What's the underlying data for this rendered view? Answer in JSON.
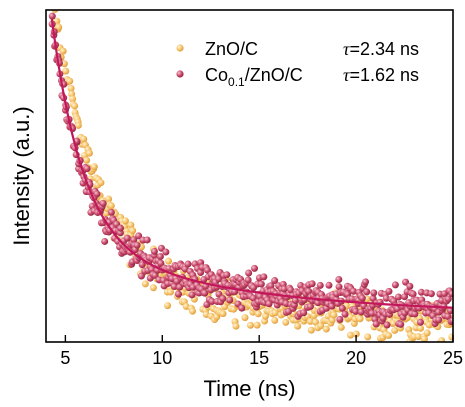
{
  "chart_data": {
    "type": "scatter",
    "xlabel": "Time (ns)",
    "ylabel": "Intensity (a.u.)",
    "xlim": [
      4,
      25
    ],
    "ylim": [
      0.08,
      1.0
    ],
    "x_ticks": [
      5,
      10,
      15,
      20,
      25
    ],
    "y_tick_labels": false,
    "grid": false,
    "legend_placement": "top-right",
    "series": [
      {
        "name": "ZnO/C",
        "name_main": "ZnO/C",
        "name_sub": "",
        "name_rest": "",
        "tau_label": "τ=2.34 ns",
        "tau_symbol": "τ",
        "tau_value": "=2.34 ns",
        "color": "#f7c46c",
        "marker": "sphere",
        "decay_curve": {
          "a": 0.84,
          "tau_ns": 2.34,
          "offset": 0.22,
          "t0": 4.3
        }
      },
      {
        "name": "Co0.1/ZnO/C",
        "name_main": "Co",
        "name_sub": "0.1",
        "name_rest": "/ZnO/C",
        "tau_label": "τ=1.62 ns",
        "tau_symbol": "τ",
        "tau_value": "=1.62 ns",
        "color": "#c9496b",
        "marker": "sphere",
        "fit_line_color": "#c2185b",
        "decay_curve": {
          "a": 0.62,
          "tau_ns": 1.62,
          "offset": 0.155,
          "slow_a": 0.2,
          "slow_tau_ns": 9.0,
          "t0": 4.3
        }
      }
    ]
  }
}
